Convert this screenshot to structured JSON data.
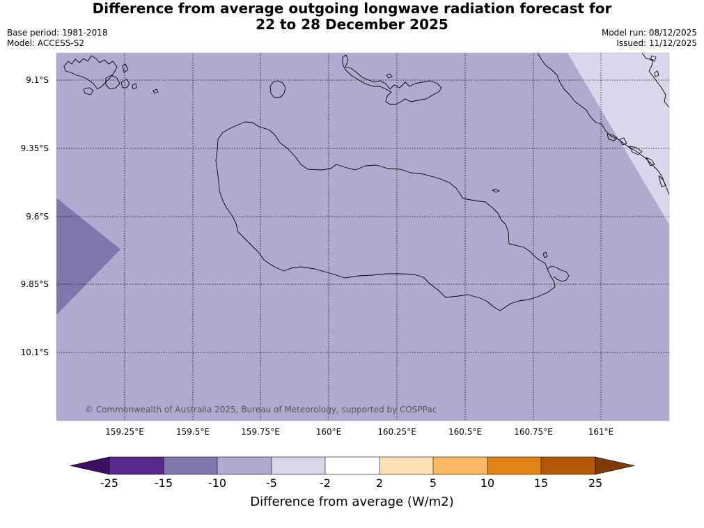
{
  "title": {
    "line1": "Difference from average outgoing longwave radiation forecast for",
    "line2": "22 to 28 December 2025"
  },
  "meta": {
    "base_period": "Base period: 1981-2018",
    "model": "Model: ACCESS-S2",
    "model_run": "Model run: 08/12/2025",
    "issued": "Issued: 11/12/2025"
  },
  "map": {
    "latitude_labels": [
      "9.1°S",
      "9.35°S",
      "9.6°S",
      "9.85°S",
      "10.1°S"
    ],
    "longitude_labels": [
      "159.25°E",
      "159.5°E",
      "159.75°E",
      "160°E",
      "160.25°E",
      "160.5°E",
      "160.75°E",
      "161°E"
    ],
    "copyright": "© Commonwealth of Australia 2025, Bureau of Meteorology, supported by COSPPac",
    "colors": {
      "background_fill": "#b0aad1",
      "darker_fill": "#8175ae",
      "lighter_fill": "#d8d8ea",
      "coastline": "#000000",
      "gridline": "#000000"
    }
  },
  "colorbar": {
    "label": "Difference from average (W/m2)",
    "ticks": [
      "-25",
      "-15",
      "-10",
      "-5",
      "-2",
      "2",
      "5",
      "10",
      "15",
      "25"
    ],
    "colors": [
      "#3f0f63",
      "#58288c",
      "#8175ae",
      "#b0aad1",
      "#d8d8ea",
      "#ffffff",
      "#fee0b6",
      "#fdb863",
      "#e08214",
      "#b35806",
      "#7f3b08"
    ]
  }
}
